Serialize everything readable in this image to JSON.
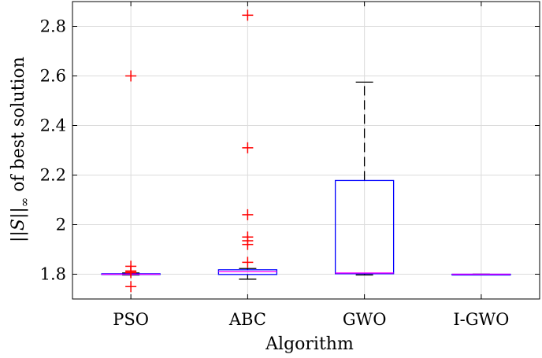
{
  "chart_data": {
    "type": "boxplot",
    "title": "",
    "xlabel": "Algorithm",
    "ylabel": "||S||∞ of best solution",
    "ylabel_parts": {
      "prefix": "||",
      "symbol": "S",
      "suffix": "||",
      "subscript": "∞",
      "rest": " of best solution"
    },
    "ylim": [
      1.7,
      2.9
    ],
    "yticks": [
      1.8,
      2,
      2.2,
      2.4,
      2.6,
      2.8
    ],
    "ytick_labels": [
      "1.8",
      "2",
      "2.2",
      "2.4",
      "2.6",
      "2.8"
    ],
    "grid": true,
    "categories": [
      "PSO",
      "ABC",
      "GWO",
      "I-GWO"
    ],
    "boxes": [
      {
        "name": "PSO",
        "whisker_low": 1.797,
        "q1": 1.799,
        "median": 1.8,
        "q3": 1.802,
        "whisker_high": 1.805,
        "outliers": [
          2.6,
          1.832,
          1.813,
          1.808,
          1.806,
          1.75
        ]
      },
      {
        "name": "ABC",
        "whisker_low": 1.78,
        "q1": 1.799,
        "median": 1.81,
        "q3": 1.818,
        "whisker_high": 1.823,
        "outliers": [
          2.845,
          2.31,
          2.04,
          1.95,
          1.935,
          1.92,
          1.848
        ]
      },
      {
        "name": "GWO",
        "whisker_low": 1.797,
        "q1": 1.802,
        "median": 1.805,
        "q3": 2.178,
        "whisker_high": 2.575,
        "outliers": []
      },
      {
        "name": "I-GWO",
        "whisker_low": 1.8,
        "q1": 1.8,
        "median": 1.8,
        "q3": 1.8,
        "whisker_high": 1.8,
        "outliers": []
      }
    ],
    "colors": {
      "box": "#0000ff",
      "median": "#ff00ff",
      "whisker": "#000000",
      "outlier": "#ff0000",
      "grid": "#dcdcdc"
    }
  }
}
